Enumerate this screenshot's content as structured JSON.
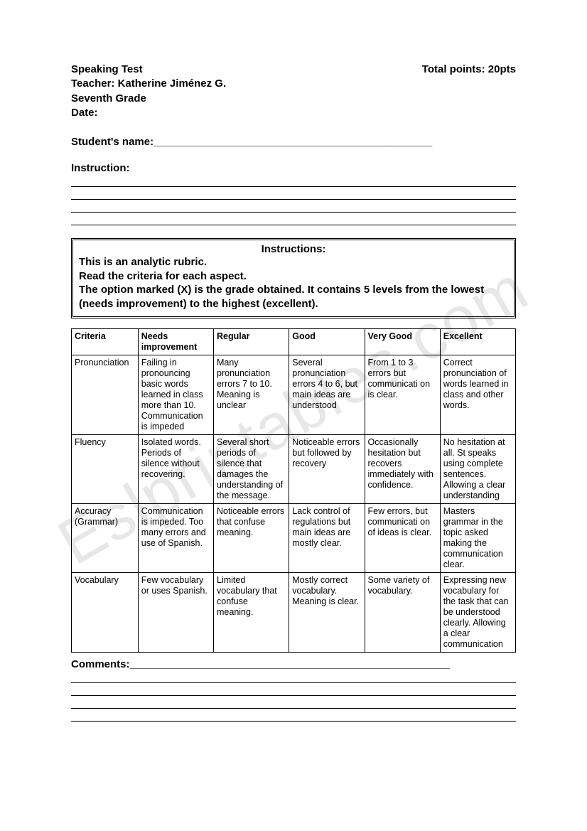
{
  "header": {
    "title": "Speaking Test",
    "points": "Total points: 20pts",
    "teacher": "Teacher: Katherine Jiménez G.",
    "grade": "Seventh Grade",
    "date": "Date:"
  },
  "student_name_label": "Student's name:",
  "student_name_line": "_______________________________________________",
  "instruction_label": "Instruction:",
  "instructions_box": {
    "title": "Instructions:",
    "line1": "This is an analytic rubric.",
    "line2": "Read the criteria for each aspect.",
    "line3": "The option marked (X) is the grade obtained. It contains 5 levels from the lowest (needs improvement) to the highest (excellent)."
  },
  "rubric": {
    "columns": [
      "Criteria",
      "Needs improvement",
      "Regular",
      "Good",
      "Very Good",
      "Excellent"
    ],
    "rows": [
      {
        "criteria": "Pronunciation",
        "needs": "Failing in pronouncing basic words learned in class more than 10. Communication is impeded",
        "regular": "Many pronunciation errors 7 to 10. Meaning is unclear",
        "good": "Several pronunciation errors 4 to 6, but main ideas are understood",
        "verygood": "From 1 to 3 errors but communicati on is clear.",
        "excellent": "Correct pronunciation of words learned in class and other words."
      },
      {
        "criteria": "Fluency",
        "needs": "Isolated words. Periods of silence without recovering.",
        "regular": "Several short periods of silence that damages the understanding of the message.",
        "good": "Noticeable errors but followed by recovery",
        "verygood": "Occasionally hesitation but recovers immediately with confidence.",
        "excellent": "No hesitation at all. St speaks using complete sentences. Allowing a clear understanding"
      },
      {
        "criteria": "Accuracy (Grammar)",
        "needs": "Communication is impeded. Too many errors and use of Spanish.",
        "regular": "Noticeable errors that confuse meaning.",
        "good": "Lack control of regulations but main ideas are mostly clear.",
        "verygood": "Few errors, but communicati on of ideas is clear.",
        "excellent": "Masters grammar in the topic asked making the communication clear."
      },
      {
        "criteria": "Vocabulary",
        "needs": "Few vocabulary or uses Spanish.",
        "regular": "Limited vocabulary that confuse meaning.",
        "good": "Mostly correct vocabulary. Meaning is clear.",
        "verygood": "Some variety of vocabulary.",
        "excellent": "Expressing new vocabulary for the task that can be understood clearly. Allowing a clear communication"
      }
    ]
  },
  "comments_label": "Comments:",
  "comments_line": "______________________________________________________",
  "watermark": "Eslprintables.com",
  "colors": {
    "text": "#000000",
    "background": "#ffffff",
    "watermark": "rgba(120,120,120,0.18)",
    "border": "#000000"
  }
}
